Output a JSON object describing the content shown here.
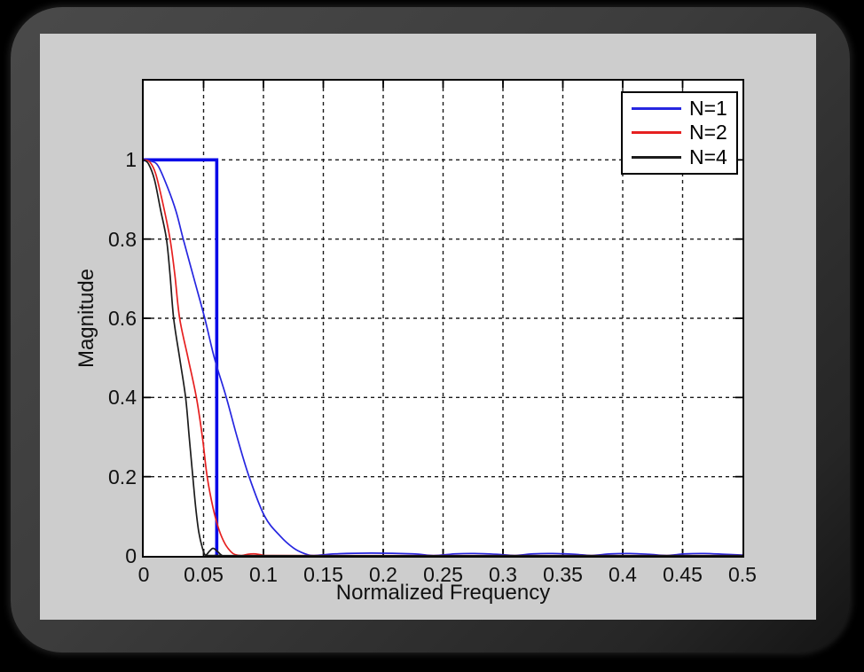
{
  "figure": {
    "background_color": "#cdcdcd",
    "frame_color_dark": "#2a2a2a",
    "page_background": "#000000"
  },
  "chart_data": {
    "type": "line",
    "title": "",
    "xlabel": "Normalized Frequency",
    "ylabel": "Magnitude",
    "xlim": [
      0,
      0.5
    ],
    "ylim": [
      0,
      1.2
    ],
    "xticks": [
      0,
      0.05,
      0.1,
      0.15,
      0.2,
      0.25,
      0.3,
      0.35,
      0.4,
      0.45,
      0.5
    ],
    "xtick_labels": [
      "0",
      "0.05",
      "0.1",
      "0.15",
      "0.2",
      "0.25",
      "0.3",
      "0.35",
      "0.4",
      "0.45",
      "0.5"
    ],
    "yticks": [
      0,
      0.2,
      0.4,
      0.6,
      0.8,
      1
    ],
    "ytick_labels": [
      "0",
      "0.2",
      "0.4",
      "0.6",
      "0.8",
      "1"
    ],
    "grid": "dashed",
    "grid_color": "#1a1a1a",
    "legend_position": "northeast",
    "ideal_filter": {
      "description": "ideal brick-wall response",
      "color": "#0a0ae8",
      "cutoff": 0.061,
      "passband_level": 1,
      "line_width": 3.6,
      "smooth": false,
      "points": [
        [
          0,
          1
        ],
        [
          0.061,
          1
        ],
        [
          0.061,
          0
        ]
      ]
    },
    "series": [
      {
        "name": "N=1",
        "color": "#2626e0",
        "line_width": 1.7,
        "smooth": true,
        "first_null": 0.142,
        "points": [
          [
            0,
            1
          ],
          [
            0.006,
            0.997
          ],
          [
            0.012,
            0.985
          ],
          [
            0.02,
            0.93
          ],
          [
            0.027,
            0.87
          ],
          [
            0.033,
            0.8
          ],
          [
            0.042,
            0.7
          ],
          [
            0.051,
            0.6
          ],
          [
            0.059,
            0.5
          ],
          [
            0.069,
            0.4
          ],
          [
            0.078,
            0.3
          ],
          [
            0.088,
            0.2
          ],
          [
            0.101,
            0.1
          ],
          [
            0.114,
            0.05
          ],
          [
            0.125,
            0.02
          ],
          [
            0.134,
            0.006
          ],
          [
            0.142,
            0.001
          ],
          [
            0.16,
            0.005
          ],
          [
            0.19,
            0.007
          ],
          [
            0.225,
            0.005
          ],
          [
            0.242,
            0.001
          ],
          [
            0.26,
            0.005
          ],
          [
            0.276,
            0.006
          ],
          [
            0.295,
            0.004
          ],
          [
            0.31,
            0.001
          ],
          [
            0.325,
            0.005
          ],
          [
            0.341,
            0.006
          ],
          [
            0.36,
            0.004
          ],
          [
            0.374,
            0.001
          ],
          [
            0.39,
            0.005
          ],
          [
            0.406,
            0.006
          ],
          [
            0.422,
            0.004
          ],
          [
            0.437,
            0.001
          ],
          [
            0.452,
            0.005
          ],
          [
            0.468,
            0.006
          ],
          [
            0.485,
            0.004
          ],
          [
            0.5,
            0.002
          ]
        ]
      },
      {
        "name": "N=2",
        "color": "#e62020",
        "line_width": 1.7,
        "smooth": true,
        "first_null": 0.0765,
        "points": [
          [
            0,
            1
          ],
          [
            0.005,
            0.995
          ],
          [
            0.01,
            0.965
          ],
          [
            0.016,
            0.89
          ],
          [
            0.022,
            0.8
          ],
          [
            0.026,
            0.71
          ],
          [
            0.03,
            0.6
          ],
          [
            0.037,
            0.5
          ],
          [
            0.044,
            0.4
          ],
          [
            0.049,
            0.3
          ],
          [
            0.053,
            0.2
          ],
          [
            0.058,
            0.12
          ],
          [
            0.063,
            0.065
          ],
          [
            0.068,
            0.03
          ],
          [
            0.073,
            0.01
          ],
          [
            0.0765,
            0.003
          ],
          [
            0.082,
            0.001
          ],
          [
            0.087,
            0.004
          ],
          [
            0.092,
            0.005
          ],
          [
            0.098,
            0.003
          ],
          [
            0.104,
            0.001
          ],
          [
            0.15,
            0.0005
          ],
          [
            0.3,
            0.0005
          ],
          [
            0.5,
            0.0005
          ]
        ]
      },
      {
        "name": "N=4",
        "color": "#1c1c1c",
        "line_width": 1.7,
        "smooth": true,
        "first_null": 0.0515,
        "points": [
          [
            0,
            1
          ],
          [
            0.004,
            0.99
          ],
          [
            0.009,
            0.95
          ],
          [
            0.014,
            0.875
          ],
          [
            0.019,
            0.8
          ],
          [
            0.022,
            0.71
          ],
          [
            0.025,
            0.6
          ],
          [
            0.03,
            0.5
          ],
          [
            0.035,
            0.4
          ],
          [
            0.038,
            0.3
          ],
          [
            0.041,
            0.2
          ],
          [
            0.0435,
            0.12
          ],
          [
            0.046,
            0.06
          ],
          [
            0.049,
            0.02
          ],
          [
            0.0515,
            0.002
          ],
          [
            0.055,
            0.012
          ],
          [
            0.058,
            0.019
          ],
          [
            0.062,
            0.01
          ],
          [
            0.065,
            0.002
          ],
          [
            0.07,
            0.0005
          ],
          [
            0.3,
            0.0005
          ],
          [
            0.5,
            0.0005
          ]
        ]
      }
    ]
  },
  "legend": {
    "items": [
      {
        "label": "N=1"
      },
      {
        "label": "N=2"
      },
      {
        "label": "N=4"
      }
    ]
  }
}
